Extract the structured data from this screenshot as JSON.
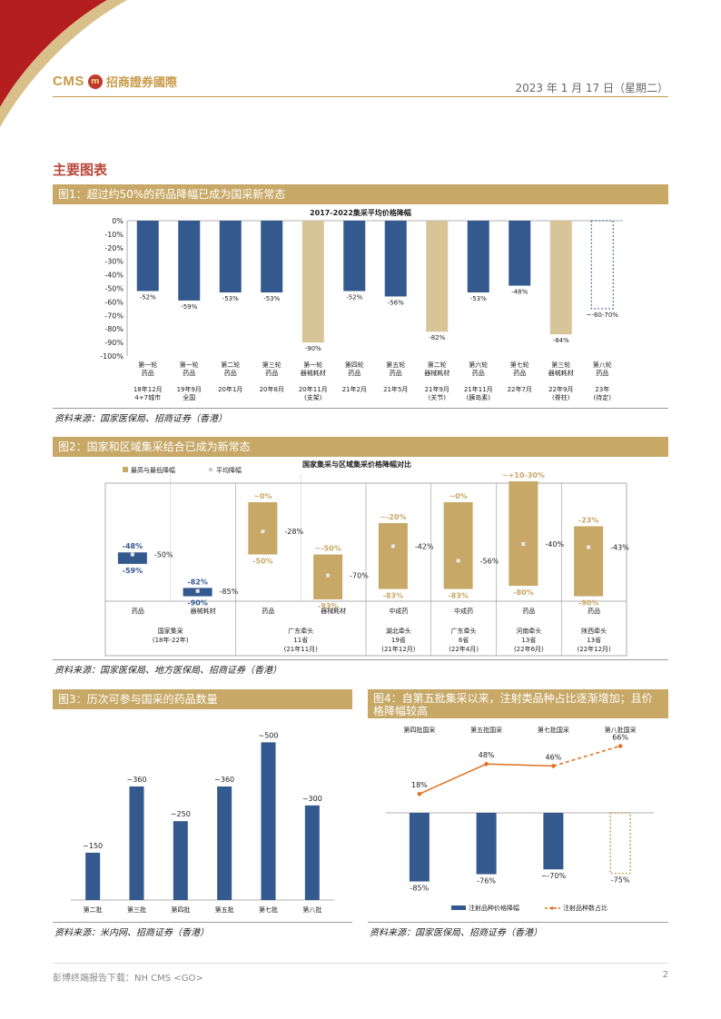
{
  "header": {
    "logo_cms": "CMS",
    "logo_name": "招商證券國際",
    "date": "2023 年 1 月 17 日（星期二）"
  },
  "section_title": "主要图表",
  "colors": {
    "navy": "#34598f",
    "tan": "#d8c597",
    "gold": "#c7a867",
    "orange": "#e07020",
    "red": "#b8473a"
  },
  "fig1": {
    "caption": "图1：超过约50%的药品降幅已成为国采新常态",
    "source": "资料来源：国家医保局、招商证券（香港）",
    "chart_data": {
      "type": "bar",
      "title": "2017-2022集采平均价格降幅",
      "ylim": [
        -100,
        0
      ],
      "yticks": [
        "0%",
        "-10%",
        "-20%",
        "-30%",
        "-40%",
        "-50%",
        "-60%",
        "-70%",
        "-80%",
        "-90%",
        "-100%"
      ],
      "bars": [
        {
          "cat1": "第一轮",
          "cat2": "药品",
          "d1": "18年12月",
          "d2": "4+7城市",
          "value": -52,
          "label": "-52%",
          "kind": "drug"
        },
        {
          "cat1": "第一轮",
          "cat2": "药品",
          "d1": "19年9月",
          "d2": "全国",
          "value": -59,
          "label": "-59%",
          "kind": "drug"
        },
        {
          "cat1": "第二轮",
          "cat2": "药品",
          "d1": "20年1月",
          "d2": "",
          "value": -53,
          "label": "-53%",
          "kind": "drug"
        },
        {
          "cat1": "第三轮",
          "cat2": "药品",
          "d1": "20年8月",
          "d2": "",
          "value": -53,
          "label": "-53%",
          "kind": "drug"
        },
        {
          "cat1": "第一轮",
          "cat2": "器械耗材",
          "d1": "20年11月",
          "d2": "(支架)",
          "value": -90,
          "label": "-90%",
          "kind": "device"
        },
        {
          "cat1": "第四轮",
          "cat2": "药品",
          "d1": "21年2月",
          "d2": "",
          "value": -52,
          "label": "-52%",
          "kind": "drug"
        },
        {
          "cat1": "第五轮",
          "cat2": "药品",
          "d1": "21年5月",
          "d2": "",
          "value": -56,
          "label": "-56%",
          "kind": "drug"
        },
        {
          "cat1": "第二轮",
          "cat2": "器械耗材",
          "d1": "21年9月",
          "d2": "(关节)",
          "value": -82,
          "label": "-82%",
          "kind": "device"
        },
        {
          "cat1": "第六轮",
          "cat2": "药品",
          "d1": "21年11月",
          "d2": "(胰岛素)",
          "value": -53,
          "label": "-53%",
          "kind": "drug"
        },
        {
          "cat1": "第七轮",
          "cat2": "药品",
          "d1": "22年7月",
          "d2": "",
          "value": -48,
          "label": "-48%",
          "kind": "drug"
        },
        {
          "cat1": "第三轮",
          "cat2": "器械耗材",
          "d1": "22年9月",
          "d2": "(脊柱)",
          "value": -84,
          "label": "-84%",
          "kind": "device"
        },
        {
          "cat1": "第八轮",
          "cat2": "药品",
          "d1": "23年",
          "d2": "(待定)",
          "value": -65,
          "label": "~-60-70%",
          "kind": "pending"
        }
      ]
    }
  },
  "fig2": {
    "caption": "图2：国家和区域集采结合已成为新常态",
    "source": "资料来源：国家医保局、地方医保局、招商证券（香港）",
    "chart_data": {
      "type": "bar",
      "title": "国家集采与区域集采价格降幅对比",
      "legend": [
        "最高与最低降幅",
        "平均降幅"
      ],
      "ylim": [
        -100,
        30
      ],
      "items": [
        {
          "cat": "药品",
          "high": -48,
          "low": -59,
          "avg": -50,
          "high_label": "-48%",
          "low_label": "-59%",
          "avg_label": "-50%",
          "color": "navy"
        },
        {
          "cat": "器械耗材",
          "high": -82,
          "low": -90,
          "avg": -85,
          "high_label": "-82%",
          "low_label": "-90%",
          "avg_label": "-85%",
          "color": "navy"
        },
        {
          "cat": "药品",
          "high": 0,
          "low": -50,
          "avg": -28,
          "high_label": "~0%",
          "low_label": "-50%",
          "avg_label": "-28%",
          "color": "gold"
        },
        {
          "cat": "器械耗材",
          "high": -50,
          "low": -93,
          "avg": -70,
          "high_label": "~-50%",
          "low_label": "-93%",
          "avg_label": "-70%",
          "color": "gold"
        },
        {
          "cat": "中成药",
          "high": -20,
          "low": -83,
          "avg": -42,
          "high_label": "~-20%",
          "low_label": "-83%",
          "avg_label": "-42%",
          "color": "gold"
        },
        {
          "cat": "中成药",
          "high": 0,
          "low": -83,
          "avg": -56,
          "high_label": "~0%",
          "low_label": "-83%",
          "avg_label": "-56%",
          "color": "gold"
        },
        {
          "cat": "药品",
          "high": 20,
          "low": -80,
          "avg": -40,
          "high_label": "~+10-30%",
          "low_label": "-80%",
          "avg_label": "-40%",
          "color": "gold"
        },
        {
          "cat": "药品",
          "high": -23,
          "low": -90,
          "avg": -43,
          "high_label": "-23%",
          "low_label": "-90%",
          "avg_label": "-43%",
          "color": "gold"
        }
      ],
      "groups": [
        {
          "l1": "国家集采",
          "l2": "(18年-22年)",
          "l3": "",
          "span": 2
        },
        {
          "l1": "广东牵头",
          "l2": "11省",
          "l3": "(21年11月)",
          "span": 2
        },
        {
          "l1": "湖北牵头",
          "l2": "19省",
          "l3": "(21年12月)",
          "span": 1
        },
        {
          "l1": "广东牵头",
          "l2": "6省",
          "l3": "(22年4月)",
          "span": 1
        },
        {
          "l1": "河南牵头",
          "l2": "13省",
          "l3": "(22年6月)",
          "span": 1
        },
        {
          "l1": "陕西牵头",
          "l2": "13省",
          "l3": "(22年12月)",
          "span": 1
        }
      ]
    }
  },
  "fig3": {
    "caption": "图3：历次可参与国采的药品数量",
    "source": "资料来源：米内网、招商证券（香港）",
    "chart_data": {
      "type": "bar",
      "categories": [
        "第二批",
        "第三批",
        "第四批",
        "第五批",
        "第七批",
        "第八批"
      ],
      "values": [
        150,
        360,
        250,
        360,
        500,
        300
      ],
      "labels": [
        "~150",
        "~360",
        "~250",
        "~360",
        "~500",
        "~300"
      ],
      "ylim": [
        0,
        550
      ]
    }
  },
  "fig4": {
    "caption": "图4：自第五批集采以来，注射类品种占比逐渐增加；且价格降幅较高",
    "source": "资料来源：国家医保局、招商证券（香港）",
    "chart_data": {
      "type": "bar",
      "categories": [
        "第四批国采",
        "第五批国采",
        "第七批国采",
        "第八批国采"
      ],
      "series": [
        {
          "name": "注射品种价格降幅",
          "values": [
            -85,
            -76,
            -70,
            -75
          ],
          "labels": [
            "-85%",
            "-76%",
            "~-70%",
            "-75%"
          ]
        },
        {
          "name": "注射品种数占比",
          "values": [
            18,
            48,
            46,
            66
          ],
          "labels": [
            "18%",
            "48%",
            "46%",
            "66%"
          ]
        }
      ]
    }
  },
  "footer": {
    "left": "彭博终端报告下载：NH CMS <GO>",
    "page": "2"
  }
}
